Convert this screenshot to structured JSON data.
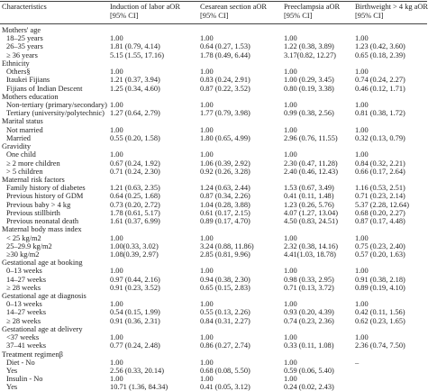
{
  "table": {
    "header": [
      [
        "Characteristics"
      ],
      [
        "Induction of labor aOR",
        "[95% CI]"
      ],
      [
        "Cesarean section aOR",
        "[95% CI]"
      ],
      [
        "Preeclampsia aOR",
        "[95% CI]"
      ],
      [
        "Birthweight > 4 kg aOR",
        "[95% CI]"
      ]
    ],
    "sections": [
      {
        "title": "Mothers' age",
        "rows": [
          [
            "18–25 years",
            "1.00",
            "1.00",
            "1.00",
            "1.00"
          ],
          [
            "26–35 years",
            "1.81 (0.79, 4.14)",
            "0.64 (0.27, 1.53)",
            "1.22 (0.38, 3.89)",
            "1.23 (0.42, 3.60)"
          ],
          [
            "≥ 36 years",
            "5.15 (1.55, 17.16)",
            "1.78 (0.49, 6.44)",
            "3.17(0.82, 12.27)",
            "0.65 (0.18, 2.39)"
          ]
        ]
      },
      {
        "title": "Ethnicity",
        "rows": [
          [
            "Others§",
            "1.00",
            "1.00",
            "1.00",
            "1.00"
          ],
          [
            "Itaukei Fijians",
            "1.21 (0.37, 3.94)",
            "0.83 (0.24, 2.91)",
            "1.00 (0.29, 3.45)",
            "0.74 (0.24, 2.27)"
          ],
          [
            "Fijians of Indian Descent",
            "1.25 (0.34, 4.60)",
            "0.87 (0.22, 3.52)",
            "0.80 (0.19, 3.38)",
            "0.46 (0.12, 1.71)"
          ]
        ]
      },
      {
        "title": "Mothers education",
        "rows": [
          [
            "Non-tertiary (primary/secondary)",
            "1.00",
            "1.00",
            "1.00",
            "1.00"
          ],
          [
            "Tertiary (university/polytechnic)",
            "1.27 (0.64, 2.79)",
            "1.77 (0.79, 3.98)",
            "0.99 (0.38, 2.56)",
            "0.81 (0.38, 1.72)"
          ]
        ]
      },
      {
        "title": "Marital status",
        "rows": [
          [
            "Not married",
            "1.00",
            "1.00",
            "1.00",
            "1.00"
          ],
          [
            "Married",
            "0.55 (0.20, 1.58)",
            "1.80 (0.65, 4.99)",
            "2.96 (0.76, 11.55)",
            "0.32 (0.13, 0.79)"
          ]
        ]
      },
      {
        "title": "Gravidity",
        "rows": [
          [
            "One child",
            "1.00",
            "1.00",
            "1.00",
            "1.00"
          ],
          [
            "≥ 2 more children",
            "0.67 (0.24, 1.92)",
            "1.06 (0.39, 2.92)",
            "2.30 (0.47, 11.28)",
            "0.84 (0.32, 2.21)"
          ],
          [
            "> 5 children",
            "0.71 (0.24, 2.30)",
            "0.92 (0.26, 3.28)",
            "2.40 (0.46, 12.43)",
            "0.66 (0.17, 2.64)"
          ]
        ]
      },
      {
        "title": "Maternal risk factors",
        "rows": [
          [
            "Family history of diabetes",
            "1.21 (0.63, 2.35)",
            "1.24 (0.63, 2.44)",
            "1.53 (0.67, 3.49)",
            "1.16 (0.53, 2.51)"
          ],
          [
            "Previous history of GDM",
            "0.64 (0.25, 1.68)",
            "0.87 (0.34, 2.26)",
            "0.41 (0.11, 1.48)",
            "0.71 (0.23, 2.14)"
          ],
          [
            "Previous baby > 4 kg",
            "0.73 (0.20, 2.72)",
            "1.04 (0.28, 3.88)",
            "1.23 (0.26, 5.76)",
            "5.37 (2.28, 12.64)"
          ],
          [
            "Previous stillbirth",
            "1.78 (0.61, 5.17)",
            "0.61 (0.17, 2.15)",
            "4.07 (1.27, 13.04)",
            "0.68 (0.20, 2.27)"
          ],
          [
            "Previous neonatal death",
            "1.61 (0.37, 6.99)",
            "0.89 (0.17, 4.70)",
            "4.50 (0.83, 24.51)",
            "0.87 (0.17, 4.48)"
          ]
        ]
      },
      {
        "title": "Maternal body mass index",
        "rows": [
          [
            "< 25 kg/m2",
            "1.00",
            "1.00",
            "1.00",
            "1.00"
          ],
          [
            "25–29.9 kg/m2",
            "1.00(0.33, 3.02)",
            "3.24 (0.88, 11.86)",
            "2.32 (0.38, 14.16)",
            "0.75 (0.23, 2.40)"
          ],
          [
            "≥30 kg/m2",
            "1.08(0.39, 2.97)",
            "2.85 (0.81, 9.96)",
            "4.41(1.03, 18.78)",
            "0.57 (0.20, 1.63)"
          ]
        ]
      },
      {
        "title": "Gestational age at booking",
        "rows": [
          [
            "0–13 weeks",
            "1.00",
            "1.00",
            "1.00",
            "1.00"
          ],
          [
            "14–27 weeks",
            "0.97 (0.44, 2.16)",
            "0.94 (0.38, 2.30)",
            "0.98 (0.33, 2.95)",
            "0.91 (0.38, 2.18)"
          ],
          [
            "≥ 28 weeks",
            "0.91 (0.23, 3.52)",
            "0.65 (0.15, 2.83)",
            "0.71 (0.13, 3.72)",
            "0.89 (0.19, 4.10)"
          ]
        ]
      },
      {
        "title": "Gestational age at diagnosis",
        "rows": [
          [
            "0–13 weeks",
            "1.00",
            "1.00",
            "1.00",
            "1.00"
          ],
          [
            "14–27 weeks",
            "0.54 (0.15, 1.99)",
            "0.55 (0.13, 2.26)",
            "0.93 (0.20, 4.39)",
            "0.42 (0.11, 1.56)"
          ],
          [
            "≥ 28 weeks",
            "0.91 (0.36, 2.31)",
            "0.84 (0.31, 2.27)",
            "0.74 (0.23, 2.36)",
            "0.62 (0.23, 1.65)"
          ]
        ]
      },
      {
        "title": "Gestational age at delivery",
        "rows": [
          [
            "<37 weeks",
            "1.00",
            "1.00",
            "1.00",
            "1.00"
          ],
          [
            "37–41 weeks",
            "0.77 (0.24, 2.48)",
            "0.86 (0.27, 2.74)",
            "0.33 (0.11, 1.08)",
            "2.36 (0.74, 7.50)"
          ]
        ]
      },
      {
        "title": "Treatment regimenβ",
        "rows": [
          [
            "Diet - No",
            "1.00",
            "1.00",
            "1.00",
            "–"
          ],
          [
            "Yes",
            "2.56 (0.33, 20.14)",
            "0.68 (0.08, 5.50)",
            "0.59 (0.06, 5.40)"
          ],
          [
            "Insulin - No",
            "1.00",
            "1.00",
            "1.00"
          ],
          [
            "Yes",
            "10.71 (1.36, 84.34)",
            "0.41 (0.05, 3.12)",
            "0.24 (0.02, 2.43)"
          ]
        ]
      }
    ]
  }
}
